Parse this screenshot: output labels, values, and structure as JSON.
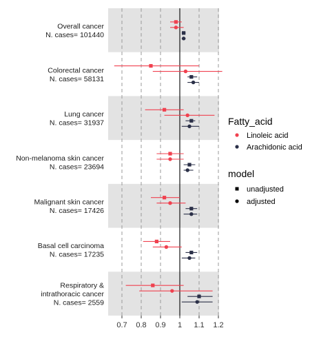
{
  "chart_data": {
    "type": "forest",
    "x_ticks": [
      0.7,
      0.8,
      0.9,
      1.0,
      1.1,
      1.2
    ],
    "x_tick_labels": [
      "0.7",
      "0.8",
      "0.9",
      "1",
      "1.1",
      "1.2"
    ],
    "xlim": [
      0.64,
      1.25
    ],
    "reference_line": 1.0,
    "grid": "vertical dashed",
    "colors": {
      "linoleic": "#f0414f",
      "arachidonic": "#2b3048",
      "band": "#e3e3e3"
    },
    "legend": {
      "placement": "right",
      "color_title": "Fatty_acid",
      "color_items": [
        "Linoleic acid",
        "Arachidonic acid"
      ],
      "shape_title": "model",
      "shape_items": [
        "unadjusted",
        "adjusted"
      ]
    },
    "groups": [
      {
        "label_lines": [
          "Overall cancer",
          "N. cases= 101440"
        ],
        "shaded": true,
        "rows": [
          {
            "series": "Linoleic acid",
            "model": "unadjusted",
            "est": 0.98,
            "lo": 0.95,
            "hi": 1.01
          },
          {
            "series": "Linoleic acid",
            "model": "adjusted",
            "est": 0.98,
            "lo": 0.95,
            "hi": 1.02
          },
          {
            "series": "Arachidonic acid",
            "model": "unadjusted",
            "est": 1.02,
            "lo": 1.01,
            "hi": 1.03
          },
          {
            "series": "Arachidonic acid",
            "model": "adjusted",
            "est": 1.02,
            "lo": 1.01,
            "hi": 1.03
          }
        ]
      },
      {
        "label_lines": [
          "Colorectal cancer",
          "N. cases= 58131"
        ],
        "shaded": false,
        "rows": [
          {
            "series": "Linoleic acid",
            "model": "unadjusted",
            "est": 0.85,
            "lo": 0.66,
            "hi": 1.1
          },
          {
            "series": "Linoleic acid",
            "model": "adjusted",
            "est": 1.03,
            "lo": 0.86,
            "hi": 1.22
          },
          {
            "series": "Arachidonic acid",
            "model": "unadjusted",
            "est": 1.06,
            "lo": 1.04,
            "hi": 1.09
          },
          {
            "series": "Arachidonic acid",
            "model": "adjusted",
            "est": 1.07,
            "lo": 1.04,
            "hi": 1.1
          }
        ]
      },
      {
        "label_lines": [
          "Lung cancer",
          "N. cases= 31937"
        ],
        "shaded": true,
        "rows": [
          {
            "series": "Linoleic acid",
            "model": "unadjusted",
            "est": 0.92,
            "lo": 0.82,
            "hi": 1.02
          },
          {
            "series": "Linoleic acid",
            "model": "adjusted",
            "est": 1.04,
            "lo": 0.92,
            "hi": 1.18
          },
          {
            "series": "Arachidonic acid",
            "model": "unadjusted",
            "est": 1.06,
            "lo": 1.03,
            "hi": 1.08
          },
          {
            "series": "Arachidonic acid",
            "model": "adjusted",
            "est": 1.05,
            "lo": 1.01,
            "hi": 1.1
          }
        ]
      },
      {
        "label_lines": [
          "Non-melanoma skin cancer",
          "N. cases= 23694"
        ],
        "shaded": false,
        "rows": [
          {
            "series": "Linoleic acid",
            "model": "unadjusted",
            "est": 0.95,
            "lo": 0.88,
            "hi": 1.02
          },
          {
            "series": "Linoleic acid",
            "model": "adjusted",
            "est": 0.95,
            "lo": 0.88,
            "hi": 1.02
          },
          {
            "series": "Arachidonic acid",
            "model": "unadjusted",
            "est": 1.05,
            "lo": 1.02,
            "hi": 1.08
          },
          {
            "series": "Arachidonic acid",
            "model": "adjusted",
            "est": 1.04,
            "lo": 1.02,
            "hi": 1.07
          }
        ]
      },
      {
        "label_lines": [
          "Malignant skin cancer",
          "N. cases= 17426"
        ],
        "shaded": true,
        "rows": [
          {
            "series": "Linoleic acid",
            "model": "unadjusted",
            "est": 0.92,
            "lo": 0.85,
            "hi": 1.0
          },
          {
            "series": "Linoleic acid",
            "model": "adjusted",
            "est": 0.95,
            "lo": 0.88,
            "hi": 1.03
          },
          {
            "series": "Arachidonic acid",
            "model": "unadjusted",
            "est": 1.06,
            "lo": 1.03,
            "hi": 1.09
          },
          {
            "series": "Arachidonic acid",
            "model": "adjusted",
            "est": 1.06,
            "lo": 1.02,
            "hi": 1.09
          }
        ]
      },
      {
        "label_lines": [
          "Basal cell carcinoma",
          "N. cases= 17235"
        ],
        "shaded": false,
        "rows": [
          {
            "series": "Linoleic acid",
            "model": "unadjusted",
            "est": 0.88,
            "lo": 0.81,
            "hi": 0.95
          },
          {
            "series": "Linoleic acid",
            "model": "adjusted",
            "est": 0.93,
            "lo": 0.86,
            "hi": 1.01
          },
          {
            "series": "Arachidonic acid",
            "model": "unadjusted",
            "est": 1.06,
            "lo": 1.03,
            "hi": 1.09
          },
          {
            "series": "Arachidonic acid",
            "model": "adjusted",
            "est": 1.05,
            "lo": 1.01,
            "hi": 1.08
          }
        ]
      },
      {
        "label_lines": [
          "Respiratory &",
          "intrathoracic cancer",
          "N. cases= 2559"
        ],
        "shaded": true,
        "rows": [
          {
            "series": "Linoleic acid",
            "model": "unadjusted",
            "est": 0.86,
            "lo": 0.72,
            "hi": 1.02
          },
          {
            "series": "Linoleic acid",
            "model": "adjusted",
            "est": 0.96,
            "lo": 0.79,
            "hi": 1.17
          },
          {
            "series": "Arachidonic acid",
            "model": "unadjusted",
            "est": 1.1,
            "lo": 1.04,
            "hi": 1.17
          },
          {
            "series": "Arachidonic acid",
            "model": "adjusted",
            "est": 1.09,
            "lo": 1.01,
            "hi": 1.17
          }
        ]
      }
    ]
  }
}
